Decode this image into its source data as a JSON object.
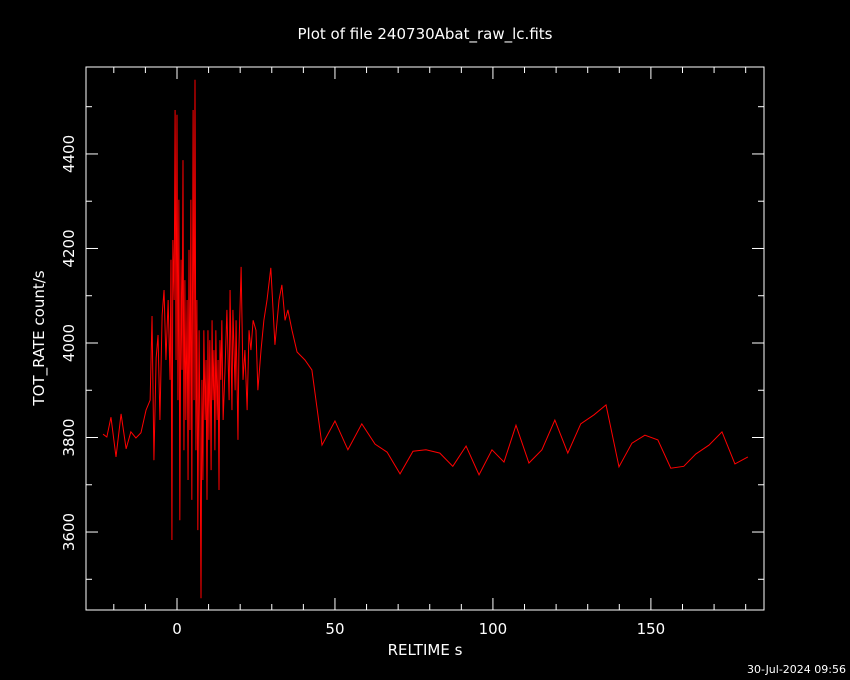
{
  "chart_data": {
    "type": "line",
    "title": "Plot of file 240730Abat_raw_lc.fits",
    "x_label": "RELTIME  s",
    "y_label": "TOT_RATE  count/s",
    "timestamp": "30-Jul-2024 09:56",
    "xlim": [
      -28.8,
      185.8
    ],
    "ylim": [
      3435,
      4584
    ],
    "xticks": [
      0,
      50,
      100,
      150
    ],
    "yticks": [
      3600,
      3800,
      4000,
      4200,
      4400
    ],
    "xminorticks": [
      -20,
      -10,
      10,
      20,
      30,
      40,
      60,
      70,
      80,
      90,
      110,
      120,
      130,
      140,
      160,
      170,
      180
    ],
    "yminorticks": [
      3500,
      3700,
      3900,
      4100,
      4300,
      4500
    ],
    "series": [
      {
        "color": "#ff0000",
        "x": [
          -23.4,
          -22.2,
          -20.9,
          -19.3,
          -17.7,
          -16.1,
          -14.6,
          -13,
          -11.4,
          -9.8,
          -8.5,
          -7.9,
          -7.3,
          -6.6,
          -6,
          -5.4,
          -4.7,
          -4.1,
          -3.5,
          -2.8,
          -2.2,
          -1.9,
          -1.6,
          -1.3,
          -0.9,
          -0.6,
          -0.3,
          0,
          0.3,
          0.6,
          0.9,
          1.3,
          1.6,
          1.9,
          2.2,
          2.5,
          2.8,
          3.2,
          3.5,
          3.8,
          4.1,
          4.4,
          4.7,
          5.1,
          5.4,
          5.7,
          6,
          6.3,
          6.6,
          7,
          7.3,
          7.6,
          7.9,
          8.2,
          8.5,
          8.9,
          9.2,
          9.5,
          9.8,
          10.1,
          10.4,
          10.8,
          11.1,
          11.4,
          11.7,
          12,
          12.3,
          12.7,
          13,
          13.3,
          13.6,
          13.9,
          14.2,
          14.6,
          15.2,
          15.8,
          16.5,
          16.8,
          17.4,
          17.7,
          18.4,
          18.7,
          19.3,
          19.6,
          20.3,
          20.9,
          21.5,
          22.2,
          22.8,
          23.4,
          24.1,
          25,
          25.6,
          26.6,
          27.5,
          28.5,
          29.7,
          31,
          32.3,
          33.2,
          34.2,
          35.1,
          36.4,
          38,
          40.5,
          42.7,
          45.9,
          50,
          54.1,
          58.5,
          62.7,
          66.5,
          70.6,
          74.7,
          78.8,
          83.2,
          87.3,
          91.5,
          95.6,
          99.7,
          103.5,
          107.3,
          111.4,
          115.5,
          119.6,
          123.7,
          127.8,
          132,
          135.8,
          139.9,
          144,
          148.1,
          152.2,
          156.3,
          160.4,
          164.2,
          168.4,
          172.5,
          176.6,
          180.7
        ],
        "values": [
          3807,
          3801,
          3843,
          3759,
          3850,
          3776,
          3812,
          3799,
          3810,
          3858,
          3879,
          4057,
          3752,
          3968,
          4017,
          3837,
          4059,
          4112,
          3964,
          4091,
          3922,
          4176,
          3583,
          4218,
          4091,
          4493,
          3964,
          4483,
          3879,
          4303,
          3625,
          4176,
          3943,
          4387,
          3773,
          4133,
          3837,
          4091,
          3710,
          4197,
          3816,
          4303,
          3668,
          4493,
          3879,
          4557,
          3773,
          4091,
          3604,
          4027,
          3795,
          3460,
          3922,
          3710,
          4027,
          3837,
          3964,
          3668,
          4027,
          3795,
          4006,
          3731,
          4048,
          3879,
          3985,
          3773,
          4027,
          3837,
          3964,
          3689,
          4006,
          3922,
          4048,
          3837,
          3943,
          4070,
          3879,
          4112,
          3858,
          4070,
          3900,
          4048,
          3795,
          3985,
          4161,
          3922,
          3985,
          3858,
          4027,
          3985,
          4048,
          4027,
          3900,
          3985,
          4048,
          4091,
          4159,
          3996,
          4091,
          4123,
          4048,
          4070,
          4027,
          3981,
          3964,
          3943,
          3784,
          3835,
          3774,
          3829,
          3786,
          3769,
          3723,
          3771,
          3774,
          3767,
          3739,
          3782,
          3721,
          3774,
          3748,
          3826,
          3746,
          3774,
          3837,
          3767,
          3829,
          3848,
          3869,
          3738,
          3788,
          3805,
          3795,
          3735,
          3739,
          3765,
          3784,
          3812,
          3744,
          3759
        ]
      }
    ]
  }
}
